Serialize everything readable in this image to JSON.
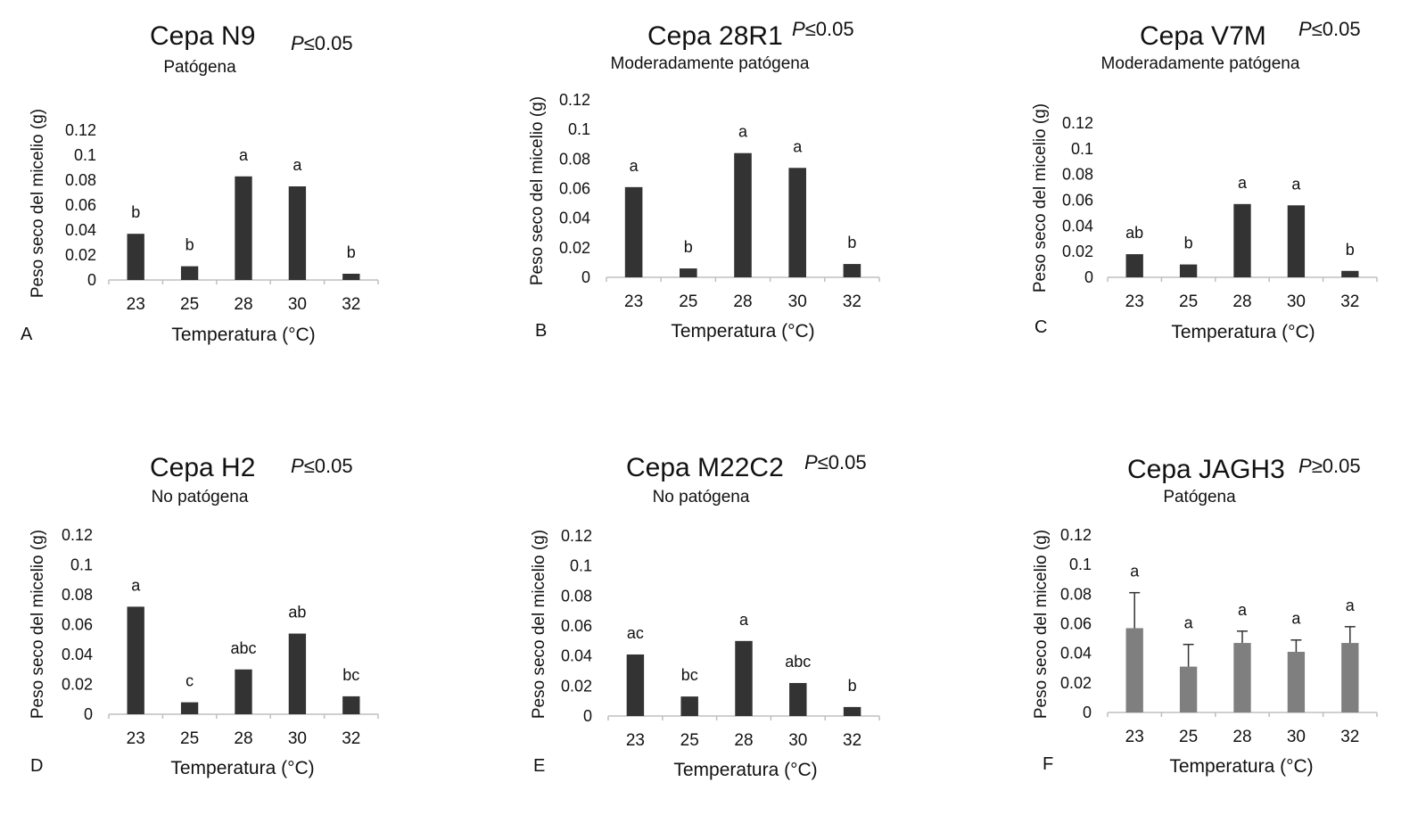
{
  "colors": {
    "bar": "#333333",
    "bar_grey": "#7f7f7f",
    "axis": "#bfbfbf",
    "error": "#333333"
  },
  "chart_data": [
    {
      "type": "bar",
      "panel_label": "A",
      "title": "Cepa N9",
      "p_symbol": "P",
      "p_rest": "≤0.05",
      "subtitle": "Patógena",
      "xlabel": "Temperatura (°C)",
      "ylabel": "Peso seco del micelio (g)",
      "categories": [
        "23",
        "25",
        "28",
        "30",
        "32"
      ],
      "values": [
        0.037,
        0.011,
        0.083,
        0.075,
        0.005
      ],
      "letters": [
        "b",
        "b",
        "a",
        "a",
        "b"
      ],
      "ylim": [
        0,
        0.12
      ],
      "yticks": [
        "0",
        "0.02",
        "0.04",
        "0.06",
        "0.08",
        "0.1",
        "0.12"
      ],
      "error_bars": null
    },
    {
      "type": "bar",
      "panel_label": "B",
      "title": "Cepa 28R1",
      "p_symbol": "P",
      "p_rest": "≤0.05",
      "subtitle": "Moderadamente patógena",
      "xlabel": "Temperatura (°C)",
      "ylabel": "Peso seco del micelio (g)",
      "categories": [
        "23",
        "25",
        "28",
        "30",
        "32"
      ],
      "values": [
        0.061,
        0.006,
        0.084,
        0.074,
        0.009
      ],
      "letters": [
        "a",
        "b",
        "a",
        "a",
        "b"
      ],
      "ylim": [
        0,
        0.12
      ],
      "yticks": [
        "0",
        "0.02",
        "0.04",
        "0.06",
        "0.08",
        "0.1",
        "0.12"
      ],
      "error_bars": null
    },
    {
      "type": "bar",
      "panel_label": "C",
      "title": "Cepa V7M",
      "p_symbol": "P",
      "p_rest": "≤0.05",
      "subtitle": "Moderadamente patógena",
      "xlabel": "Temperatura (°C)",
      "ylabel": "Peso seco del micelio (g)",
      "categories": [
        "23",
        "25",
        "28",
        "30",
        "32"
      ],
      "values": [
        0.018,
        0.01,
        0.057,
        0.056,
        0.005
      ],
      "letters": [
        "ab",
        "b",
        "a",
        "a",
        "b"
      ],
      "ylim": [
        0,
        0.12
      ],
      "yticks": [
        "0",
        "0.02",
        "0.04",
        "0.06",
        "0.08",
        "0.1",
        "0.12"
      ],
      "error_bars": null
    },
    {
      "type": "bar",
      "panel_label": "D",
      "title": "Cepa H2",
      "p_symbol": "P",
      "p_rest": "≤0.05",
      "subtitle": "No patógena",
      "xlabel": "Temperatura (°C)",
      "ylabel": "Peso seco del micelio (g)",
      "categories": [
        "23",
        "25",
        "28",
        "30",
        "32"
      ],
      "values": [
        0.072,
        0.008,
        0.03,
        0.054,
        0.012
      ],
      "letters": [
        "a",
        "c",
        "abc",
        "ab",
        "bc"
      ],
      "ylim": [
        0,
        0.12
      ],
      "yticks": [
        "0",
        "0.02",
        "0.04",
        "0.06",
        "0.08",
        "0.1",
        "0.12"
      ],
      "error_bars": null
    },
    {
      "type": "bar",
      "panel_label": "E",
      "title": "Cepa M22C2",
      "p_symbol": "P",
      "p_rest": "≤0.05",
      "subtitle": "No patógena",
      "xlabel": "Temperatura (°C)",
      "ylabel": "Peso seco del micelio (g)",
      "categories": [
        "23",
        "25",
        "28",
        "30",
        "32"
      ],
      "values": [
        0.041,
        0.013,
        0.05,
        0.022,
        0.006
      ],
      "letters": [
        "ac",
        "bc",
        "a",
        "abc",
        "b"
      ],
      "ylim": [
        0,
        0.12
      ],
      "yticks": [
        "0",
        "0.02",
        "0.04",
        "0.06",
        "0.08",
        "0.1",
        "0.12"
      ],
      "error_bars": null
    },
    {
      "type": "bar",
      "panel_label": "F",
      "title": "Cepa JAGH3",
      "p_symbol": "P",
      "p_rest": "≥0.05",
      "subtitle": "Patógena",
      "xlabel": "Temperatura (°C)",
      "ylabel": "Peso seco  del micelio (g)",
      "categories": [
        "23",
        "25",
        "28",
        "30",
        "32"
      ],
      "values": [
        0.057,
        0.031,
        0.047,
        0.041,
        0.047
      ],
      "letters": [
        "a",
        "a",
        "a",
        "a",
        "a"
      ],
      "ylim": [
        0,
        0.12
      ],
      "yticks": [
        "0",
        "0.02",
        "0.04",
        "0.06",
        "0.08",
        "0.1",
        "0.12"
      ],
      "error_bars": [
        0.024,
        0.015,
        0.008,
        0.008,
        0.011
      ]
    }
  ]
}
